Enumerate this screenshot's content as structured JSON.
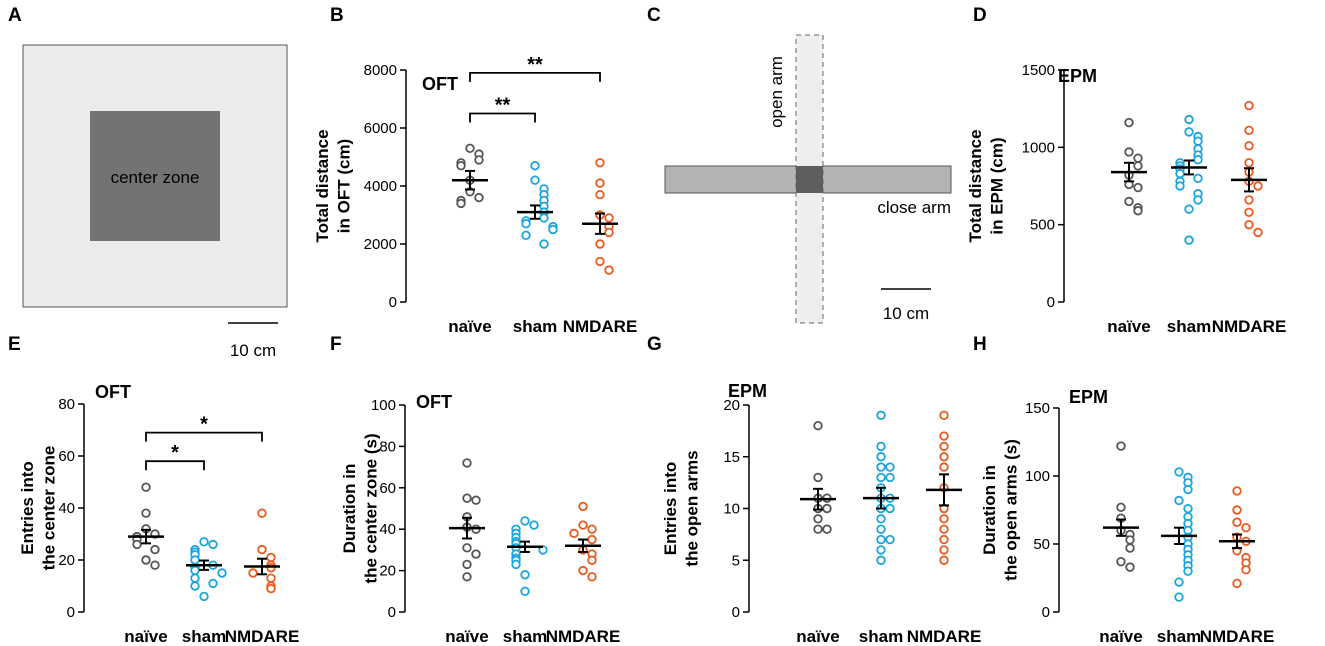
{
  "colors": {
    "naive": "#555555",
    "sham": "#1aa5dc",
    "nmdare": "#ea5a1f",
    "arena_outer": "#ececef",
    "arena_center": "#737373",
    "maze_close": "#b4b4b4",
    "maze_open": "#eeeeef",
    "maze_center": "#5e5e5e"
  },
  "panel_a": {
    "label": "A",
    "center_zone": "center zone",
    "scale": "10 cm"
  },
  "panel_c": {
    "label": "C",
    "open_arm": "open arm",
    "close_arm": "close arm",
    "scale": "10 cm"
  },
  "chart_data": [
    {
      "id": "B",
      "label": "B",
      "type": "scatter",
      "title": "OFT",
      "ylabel": [
        "Total distance",
        "in OFT (cm)"
      ],
      "categories": [
        "naïve",
        "sham",
        "NMDARE"
      ],
      "ylim": [
        0,
        8000
      ],
      "yticks": [
        0,
        2000,
        4000,
        6000,
        8000
      ],
      "series": [
        {
          "name": "naïve",
          "color": "naive",
          "mean": 4200,
          "sem": 320,
          "values": [
            5300,
            5100,
            4900,
            4800,
            4700,
            4200,
            3800,
            3600,
            3500,
            3400
          ]
        },
        {
          "name": "sham",
          "color": "sham",
          "mean": 3100,
          "sem": 230,
          "values": [
            4700,
            4200,
            3900,
            3700,
            3500,
            3300,
            3100,
            2900,
            2800,
            2700,
            2600,
            2500,
            2300,
            2000
          ]
        },
        {
          "name": "NMDARE",
          "color": "nmdare",
          "mean": 2700,
          "sem": 350,
          "values": [
            4800,
            4100,
            3700,
            3000,
            2900,
            2600,
            2400,
            2000,
            1400,
            1100
          ]
        }
      ],
      "significance": [
        {
          "from": 0,
          "to": 1,
          "y": 6500,
          "text": "**"
        },
        {
          "from": 0,
          "to": 2,
          "y": 7900,
          "text": "**"
        }
      ]
    },
    {
      "id": "D",
      "label": "D",
      "type": "scatter",
      "title": "EPM",
      "ylabel": [
        "Total distance",
        "in EPM (cm)"
      ],
      "categories": [
        "naïve",
        "sham",
        "NMDARE"
      ],
      "ylim": [
        0,
        1500
      ],
      "yticks": [
        0,
        500,
        1000,
        1500
      ],
      "series": [
        {
          "name": "naïve",
          "color": "naive",
          "mean": 840,
          "sem": 60,
          "values": [
            1160,
            970,
            930,
            880,
            820,
            760,
            740,
            650,
            610,
            590
          ]
        },
        {
          "name": "sham",
          "color": "sham",
          "mean": 870,
          "sem": 45,
          "values": [
            1180,
            1100,
            1070,
            1040,
            990,
            950,
            920,
            900,
            880,
            860,
            830,
            800,
            780,
            750,
            700,
            660,
            600,
            400
          ]
        },
        {
          "name": "NMDARE",
          "color": "nmdare",
          "mean": 790,
          "sem": 75,
          "values": [
            1270,
            1110,
            1010,
            900,
            840,
            780,
            750,
            660,
            580,
            500,
            450
          ]
        }
      ],
      "significance": []
    },
    {
      "id": "E",
      "label": "E",
      "type": "scatter",
      "title": "OFT",
      "ylabel": [
        "Entries into",
        "the center zone"
      ],
      "categories": [
        "naïve",
        "sham",
        "NMDARE"
      ],
      "ylim": [
        0,
        80
      ],
      "yticks": [
        0,
        20,
        40,
        60,
        80
      ],
      "series": [
        {
          "name": "naïve",
          "color": "naive",
          "mean": 29,
          "sem": 2.6,
          "values": [
            48,
            38,
            32,
            30,
            29,
            28,
            26,
            24,
            20,
            18
          ]
        },
        {
          "name": "sham",
          "color": "sham",
          "mean": 18,
          "sem": 1.8,
          "values": [
            27,
            26,
            24,
            23,
            22,
            20,
            18,
            17,
            16,
            15,
            13,
            11,
            10,
            6
          ]
        },
        {
          "name": "NMDARE",
          "color": "nmdare",
          "mean": 17.5,
          "sem": 3,
          "values": [
            38,
            24,
            21,
            18,
            17,
            15,
            13,
            10,
            9
          ]
        }
      ],
      "significance": [
        {
          "from": 0,
          "to": 1,
          "y": 58,
          "text": "*"
        },
        {
          "from": 0,
          "to": 2,
          "y": 69,
          "text": "*"
        }
      ]
    },
    {
      "id": "F",
      "label": "F",
      "type": "scatter",
      "title": "OFT",
      "ylabel": [
        "Duration in",
        "the center zone (s)"
      ],
      "categories": [
        "naïve",
        "sham",
        "NMDARE"
      ],
      "ylim": [
        0,
        100
      ],
      "yticks": [
        0,
        20,
        40,
        60,
        80,
        100
      ],
      "series": [
        {
          "name": "naïve",
          "color": "naive",
          "mean": 40.5,
          "sem": 5,
          "values": [
            72,
            55,
            54,
            46,
            41,
            40,
            31,
            28,
            23,
            17
          ]
        },
        {
          "name": "sham",
          "color": "sham",
          "mean": 31.5,
          "sem": 2.5,
          "values": [
            44,
            42,
            40,
            38,
            36,
            34,
            33,
            31,
            30,
            28,
            26,
            25,
            23,
            18,
            10
          ]
        },
        {
          "name": "NMDARE",
          "color": "nmdare",
          "mean": 32,
          "sem": 3,
          "values": [
            51,
            42,
            40,
            38,
            35,
            30,
            28,
            25,
            20,
            17
          ]
        }
      ],
      "significance": []
    },
    {
      "id": "G",
      "label": "G",
      "type": "scatter",
      "title": "EPM",
      "ylabel": [
        "Entries into",
        "the open arms"
      ],
      "categories": [
        "naïve",
        "sham",
        "NMDARE"
      ],
      "ylim": [
        0,
        20
      ],
      "yticks": [
        0,
        5,
        10,
        15,
        20
      ],
      "series": [
        {
          "name": "naïve",
          "color": "naive",
          "mean": 10.9,
          "sem": 1,
          "values": [
            18,
            13,
            11,
            11,
            10,
            10,
            9,
            8,
            8
          ]
        },
        {
          "name": "sham",
          "color": "sham",
          "mean": 11,
          "sem": 1,
          "values": [
            19,
            16,
            15,
            14,
            14,
            13,
            13,
            12,
            11,
            11,
            10,
            10,
            9,
            8,
            7,
            7,
            6,
            5
          ]
        },
        {
          "name": "NMDARE",
          "color": "nmdare",
          "mean": 11.8,
          "sem": 1.5,
          "values": [
            19,
            17,
            16,
            15,
            14,
            12,
            10,
            9,
            8,
            7,
            6,
            5
          ]
        }
      ],
      "significance": []
    },
    {
      "id": "H",
      "label": "H",
      "type": "scatter",
      "title": "EPM",
      "ylabel": [
        "Duration in",
        "the open arms (s)"
      ],
      "categories": [
        "naïve",
        "sham",
        "NMDARE"
      ],
      "ylim": [
        0,
        150
      ],
      "yticks": [
        0,
        50,
        100,
        150
      ],
      "series": [
        {
          "name": "naïve",
          "color": "naive",
          "mean": 62,
          "sem": 6,
          "values": [
            122,
            77,
            69,
            60,
            57,
            53,
            47,
            37,
            33
          ]
        },
        {
          "name": "sham",
          "color": "sham",
          "mean": 56,
          "sem": 6,
          "values": [
            103,
            99,
            95,
            90,
            82,
            76,
            70,
            65,
            60,
            55,
            50,
            46,
            42,
            38,
            34,
            30,
            22,
            11
          ]
        },
        {
          "name": "NMDARE",
          "color": "nmdare",
          "mean": 52,
          "sem": 5,
          "values": [
            89,
            75,
            66,
            62,
            55,
            52,
            45,
            40,
            36,
            31,
            21
          ]
        }
      ],
      "significance": []
    }
  ]
}
